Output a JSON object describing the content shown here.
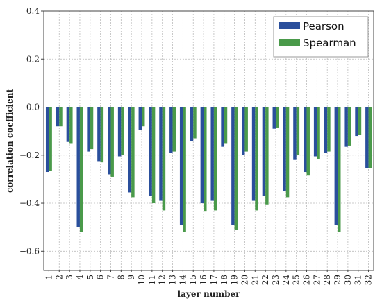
{
  "chart_data": {
    "type": "bar",
    "xlabel": "layer number",
    "ylabel": "correlation coefficient",
    "ylim": [
      -0.68,
      0.4
    ],
    "yticks": [
      -0.6,
      -0.4,
      -0.2,
      0.0,
      0.2,
      0.4
    ],
    "ytick_labels": [
      "−0.6",
      "−0.4",
      "−0.2",
      "0.0",
      "0.2",
      "0.4"
    ],
    "grid": true,
    "legend_position": "top-right",
    "categories": [
      "1",
      "2",
      "3",
      "4",
      "5",
      "6",
      "7",
      "8",
      "9",
      "10",
      "11",
      "12",
      "13",
      "14",
      "15",
      "16",
      "17",
      "18",
      "19",
      "20",
      "21",
      "22",
      "23",
      "24",
      "25",
      "26",
      "27",
      "28",
      "29",
      "30",
      "31",
      "32"
    ],
    "series": [
      {
        "name": "Pearson",
        "color": "#2a4f9c",
        "values": [
          -0.27,
          -0.08,
          -0.145,
          -0.5,
          -0.185,
          -0.225,
          -0.28,
          -0.205,
          -0.355,
          -0.095,
          -0.37,
          -0.39,
          -0.19,
          -0.49,
          -0.14,
          -0.4,
          -0.39,
          -0.165,
          -0.49,
          -0.2,
          -0.39,
          -0.37,
          -0.09,
          -0.35,
          -0.22,
          -0.27,
          -0.205,
          -0.19,
          -0.49,
          -0.165,
          -0.12,
          -0.255
        ]
      },
      {
        "name": "Spearman",
        "color": "#4a9a4a",
        "values": [
          -0.265,
          -0.08,
          -0.15,
          -0.52,
          -0.175,
          -0.23,
          -0.29,
          -0.2,
          -0.375,
          -0.08,
          -0.4,
          -0.43,
          -0.185,
          -0.52,
          -0.13,
          -0.435,
          -0.43,
          -0.15,
          -0.51,
          -0.185,
          -0.43,
          -0.405,
          -0.085,
          -0.375,
          -0.2,
          -0.285,
          -0.215,
          -0.185,
          -0.52,
          -0.16,
          -0.115,
          -0.255
        ]
      }
    ]
  }
}
